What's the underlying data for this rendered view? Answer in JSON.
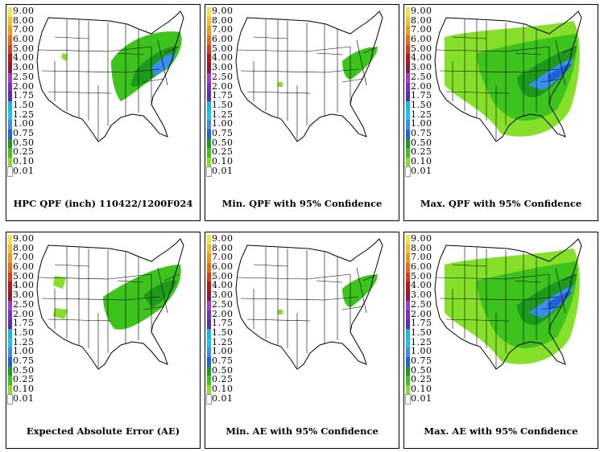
{
  "legend": {
    "labels": [
      "9.00",
      "8.00",
      "7.00",
      "6.00",
      "5.00",
      "4.00",
      "3.00",
      "2.50",
      "2.00",
      "1.75",
      "1.50",
      "1.25",
      "1.00",
      "0.75",
      "0.50",
      "0.25",
      "0.10",
      "0.01"
    ],
    "colors": [
      "#f5e14b",
      "#f4bf2a",
      "#f09a1c",
      "#ea6a1a",
      "#d93c1c",
      "#b8141c",
      "#8c1a3a",
      "#a23ad4",
      "#7a2fc4",
      "#5a2ab8",
      "#1ab8d8",
      "#18c8e8",
      "#3a8ef0",
      "#2060d8",
      "#1c9a1c",
      "#3dc41c",
      "#86e02a",
      "#ffffff"
    ]
  },
  "panels": [
    {
      "caption": "HPC QPF (inch) 110422/1200F024",
      "intensity": "high"
    },
    {
      "caption": "Min. QPF with 95% Confidence",
      "intensity": "low"
    },
    {
      "caption": "Max. QPF with 95% Confidence",
      "intensity": "max"
    },
    {
      "caption": "Expected Absolute Error (AE)",
      "intensity": "mid"
    },
    {
      "caption": "Min. AE with 95% Confidence",
      "intensity": "low"
    },
    {
      "caption": "Max. AE with 95% Confidence",
      "intensity": "max"
    }
  ]
}
